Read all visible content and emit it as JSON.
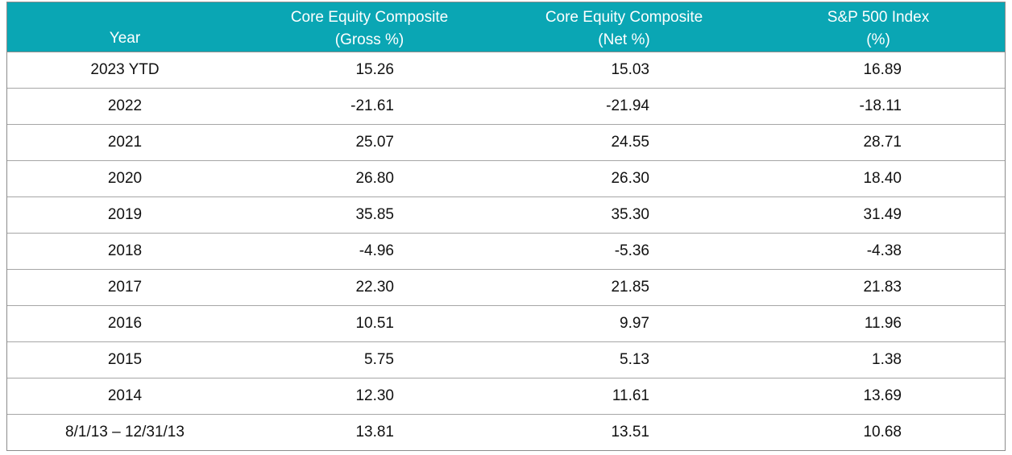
{
  "table": {
    "headers": {
      "year": "Year",
      "gross": [
        "Core Equity Composite",
        "(Gross %)"
      ],
      "net": [
        "Core Equity Composite",
        "(Net %)"
      ],
      "sp": [
        "S&P 500 Index",
        "(%)"
      ]
    },
    "rows": [
      {
        "year": "2023 YTD",
        "gross": "15.26",
        "net": "15.03",
        "sp": "16.89"
      },
      {
        "year": "2022",
        "gross": "-21.61",
        "net": "-21.94",
        "sp": "-18.11"
      },
      {
        "year": "2021",
        "gross": "25.07",
        "net": "24.55",
        "sp": "28.71"
      },
      {
        "year": "2020",
        "gross": "26.80",
        "net": "26.30",
        "sp": "18.40"
      },
      {
        "year": "2019",
        "gross": "35.85",
        "net": "35.30",
        "sp": "31.49"
      },
      {
        "year": "2018",
        "gross": "-4.96",
        "net": "-5.36",
        "sp": "-4.38"
      },
      {
        "year": "2017",
        "gross": "22.30",
        "net": "21.85",
        "sp": "21.83"
      },
      {
        "year": "2016",
        "gross": "10.51",
        "net": "9.97",
        "sp": "11.96"
      },
      {
        "year": "2015",
        "gross": "5.75",
        "net": "5.13",
        "sp": "1.38"
      },
      {
        "year": "2014",
        "gross": "12.30",
        "net": "11.61",
        "sp": "13.69"
      },
      {
        "year": "8/1/13 – 12/31/13",
        "gross": "13.81",
        "net": "13.51",
        "sp": "10.68"
      }
    ]
  },
  "colors": {
    "header_bg": "#0aa6b4",
    "header_text": "#ffffff",
    "grid": "#a6a6a6"
  }
}
